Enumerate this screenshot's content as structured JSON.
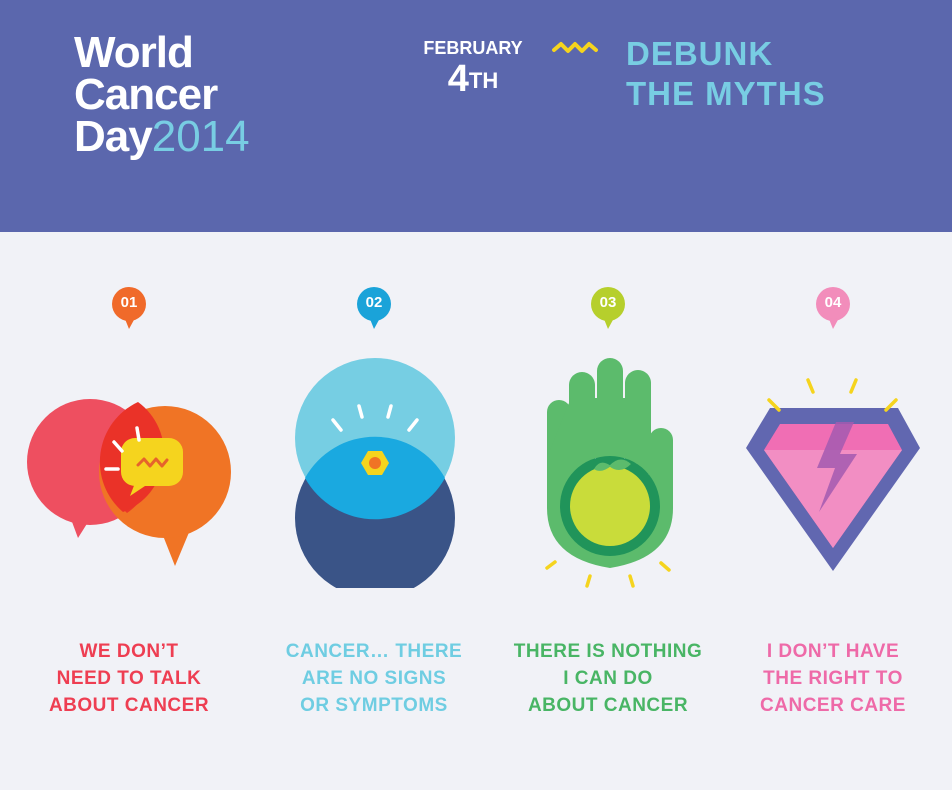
{
  "header": {
    "logo": {
      "line1": "World",
      "line2": "Cancer",
      "line3": "Day",
      "year": "2014"
    },
    "date": {
      "month": "FEBRUARY",
      "day": "4",
      "suffix": "TH"
    },
    "tagline": {
      "line1": "DEBUNK",
      "line2": "THE MYTHS"
    }
  },
  "colors": {
    "header_bg": "#5b67ad",
    "page_bg": "#f1f2f7",
    "accent_yellow": "#f5d41e",
    "tagline": "#78cde3"
  },
  "myths": [
    {
      "number": "01",
      "color": "#f06a2a",
      "text_color": "#ee3e52",
      "icon": "speech-bubbles-icon",
      "lines": [
        "WE DON’T",
        "NEED TO TALK",
        "ABOUT CANCER"
      ]
    },
    {
      "number": "02",
      "color": "#1aa3d9",
      "text_color": "#6fcde2",
      "icon": "eye-icon",
      "lines": [
        "CANCER… THERE",
        "ARE NO SIGNS",
        "OR SYMPTOMS"
      ]
    },
    {
      "number": "03",
      "color": "#b6cf2c",
      "text_color": "#49b565",
      "icon": "hand-apple-icon",
      "lines": [
        "THERE IS NOTHING",
        "I CAN DO",
        "ABOUT CANCER"
      ]
    },
    {
      "number": "04",
      "color": "#f28dbb",
      "text_color": "#ee6aa8",
      "icon": "diamond-icon",
      "lines": [
        "I DON’T HAVE",
        "THE RIGHT TO",
        "CANCER CARE"
      ]
    }
  ]
}
